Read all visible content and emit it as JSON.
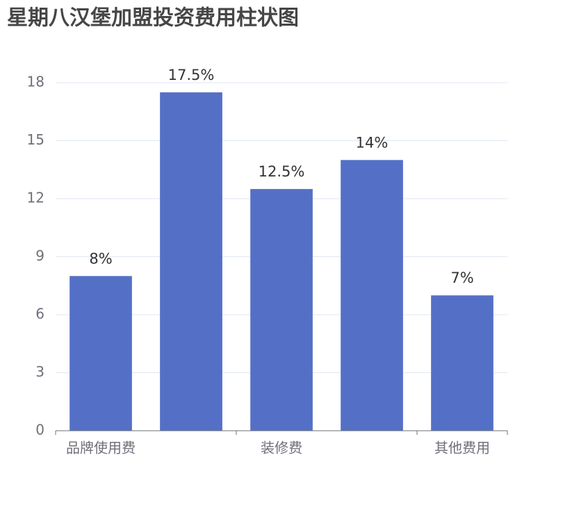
{
  "chart_data": {
    "type": "bar",
    "title": "星期八汉堡加盟投资费用柱状图",
    "categories": [
      "品牌使用费",
      null,
      "装修费",
      null,
      "其他费用"
    ],
    "values": [
      8,
      17.5,
      12.5,
      14,
      7
    ],
    "value_labels": [
      "8%",
      "17.5%",
      "12.5%",
      "14%",
      "7%"
    ],
    "color": "#5470c6",
    "ylim": [
      0,
      18
    ],
    "yticks": [
      0,
      3,
      6,
      9,
      12,
      15,
      18
    ],
    "grid": true
  }
}
